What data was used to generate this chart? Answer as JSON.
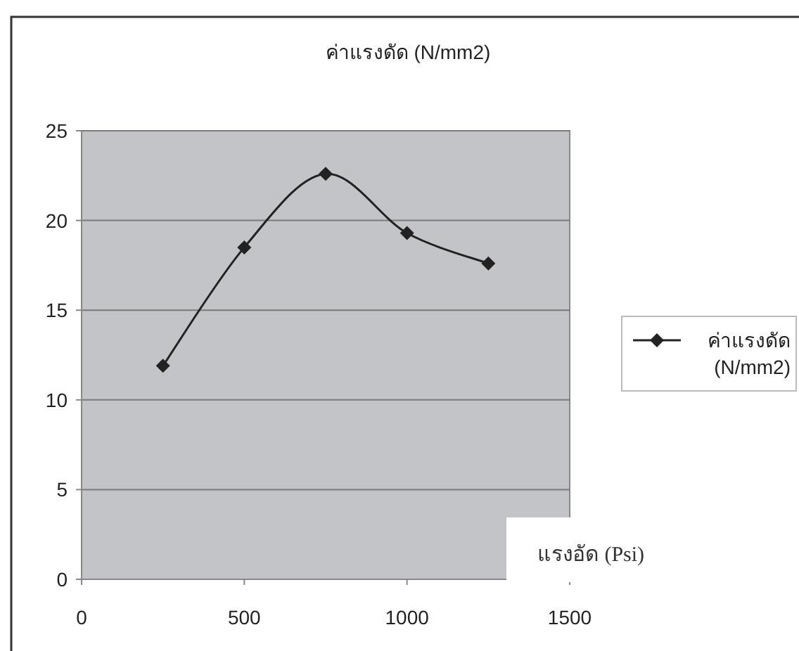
{
  "chart_data": {
    "type": "line",
    "title": "ค่าแรงดัด (N/mm2)",
    "xlabel": "แรงอัด (Psi)",
    "x": [
      250,
      500,
      750,
      1000,
      1250
    ],
    "series": [
      {
        "name": "ค่าแรงดัด (N/mm2)",
        "color": "#222222",
        "values": [
          11.9,
          18.5,
          22.6,
          19.3,
          17.6
        ]
      }
    ],
    "xlim": [
      0,
      1500
    ],
    "xticks": [
      0,
      500,
      1000,
      1500
    ],
    "ylim": [
      0,
      25
    ],
    "yticks": [
      0,
      5,
      10,
      15,
      20,
      25
    ],
    "grid": "y",
    "legend": "right",
    "marker": "diamond",
    "line_style": "solid"
  }
}
